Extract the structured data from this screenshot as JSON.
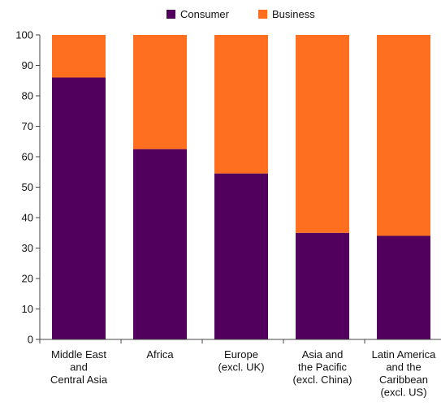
{
  "chart_data": {
    "type": "bar",
    "stacked": true,
    "categories": [
      [
        "Middle East",
        "and",
        "Central Asia"
      ],
      [
        "Africa"
      ],
      [
        "Europe",
        "(excl. UK)"
      ],
      [
        "Asia and",
        "the Pacific",
        "(excl. China)"
      ],
      [
        "Latin America",
        "and the",
        "Caribbean",
        "(excl. US)"
      ]
    ],
    "series": [
      {
        "name": "Consumer",
        "color": "#52005e",
        "values": [
          86,
          62.5,
          54.5,
          35,
          34
        ]
      },
      {
        "name": "Business",
        "color": "#ff6f1f",
        "values": [
          14,
          37.5,
          45.5,
          65,
          66
        ]
      }
    ],
    "ylim": [
      0,
      100
    ],
    "yticks": [
      0,
      10,
      20,
      30,
      40,
      50,
      60,
      70,
      80,
      90,
      100
    ],
    "legend_position": "top-center",
    "grid": false
  }
}
